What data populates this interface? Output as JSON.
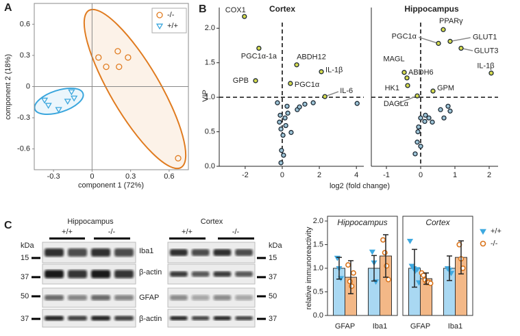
{
  "chart_data": [
    {
      "type": "scatter",
      "panel": "A",
      "x_label": "component 1 (72%)",
      "y_label": "component 2 (18%)",
      "xlim": [
        -0.45,
        0.75
      ],
      "ylim": [
        -0.8,
        0.8
      ],
      "xticks": [
        -0.3,
        0,
        0.3,
        0.6
      ],
      "yticks": [
        -0.6,
        -0.3,
        0,
        0.3,
        0.6
      ],
      "legend": "upper right",
      "series": [
        {
          "name": "-/-",
          "color": "#e07b1f",
          "marker": "circle",
          "x": [
            0.05,
            0.11,
            0.2,
            0.21,
            0.28,
            0.67
          ],
          "values": [
            0.28,
            0.19,
            0.34,
            0.19,
            0.28,
            -0.69
          ]
        },
        {
          "name": "+/+",
          "color": "#3aa6dd",
          "marker": "triangle",
          "x": [
            -0.37,
            -0.34,
            -0.26,
            -0.19,
            -0.16,
            -0.14
          ],
          "values": [
            -0.13,
            -0.18,
            -0.22,
            -0.14,
            -0.05,
            -0.11
          ]
        }
      ]
    },
    {
      "type": "scatter",
      "panel": "B",
      "title": "Cortex",
      "y_label": "VIP",
      "x_label": "log2 (fold change)",
      "xlim": [
        -3.4,
        4.4
      ],
      "ylim": [
        0,
        2.3
      ],
      "xticks": [
        -2,
        0,
        2,
        4
      ],
      "yticks": [
        {
          "value": 0,
          "label": "0.0"
        },
        {
          "value": 0.5,
          "label": "0.5"
        },
        {
          "value": 1,
          "label": "1.0"
        },
        {
          "value": 1.5,
          "label": "1.5"
        },
        {
          "value": 2,
          "label": "2.0"
        }
      ],
      "hline": 1,
      "vline": 0,
      "series": [
        {
          "color": "#d6db4f",
          "x": [
            -2.04,
            -1.26,
            0.78,
            -1.44,
            0.44,
            2.11,
            2.3
          ],
          "values": [
            2.17,
            1.71,
            1.47,
            1.24,
            1.2,
            1.37,
            1.01
          ],
          "labels": [
            "COX1",
            "PGC1α-1a",
            "ABDH12",
            "GPB",
            "PGC1α",
            "IL-1β",
            "IL-6"
          ]
        },
        {
          "color": "#9cc3d6",
          "x": [
            -0.26,
            0.26,
            -0.11,
            0.3,
            0.15,
            -0.15,
            0.19,
            -0.07,
            0.48,
            0.04,
            -0.04,
            0.07,
            -0.07,
            0.81,
            0.93,
            1.22,
            1.67,
            4.04
          ],
          "values": [
            0.92,
            0.87,
            0.74,
            0.77,
            0.7,
            0.64,
            0.59,
            0.54,
            0.49,
            0.45,
            0.23,
            0.16,
            0.05,
            0.82,
            0.86,
            0.9,
            0.92,
            0.91
          ]
        }
      ]
    },
    {
      "type": "scatter",
      "title": "Hippocampus",
      "xlim": [
        -1.44,
        2.26
      ],
      "ylim": [
        0,
        2.3
      ],
      "xticks": [
        -1,
        0,
        1,
        2
      ],
      "hline": 1,
      "vline": 0,
      "series": [
        {
          "color": "#d6db4f",
          "x": [
            0.66,
            0.52,
            0.86,
            1.18,
            2.06,
            -0.48,
            -0.4,
            -0.38,
            0.36,
            -0.1
          ],
          "values": [
            1.98,
            1.78,
            1.81,
            1.71,
            1.35,
            1.36,
            1.28,
            1.17,
            1.09,
            1.02
          ],
          "labels": [
            "PPARγ",
            "PGC1α",
            "GLUT1",
            "GLUT3",
            "IL-1β",
            "MAGL",
            "ABDH6",
            "HK1",
            "GPM",
            "DAGLα"
          ]
        },
        {
          "color": "#9cc3d6",
          "x": [
            0.8,
            0.86,
            0.58,
            0.68,
            0.14,
            0.24,
            0.34,
            0.12,
            0,
            -0.06,
            -0.08,
            -0.1,
            0,
            -0.16
          ],
          "values": [
            0.87,
            0.8,
            0.82,
            0.7,
            0.74,
            0.7,
            0.64,
            0.65,
            0.7,
            0.57,
            0.5,
            0.35,
            0.29,
            0.18
          ]
        }
      ]
    },
    {
      "type": "bar",
      "title": "Hippocampus",
      "y_label": "relative immunoreactivity",
      "categories": [
        "GFAP",
        "Iba1"
      ],
      "ylim": [
        0,
        2
      ],
      "yticks": [
        {
          "value": 0,
          "label": "0.0"
        },
        {
          "value": 0.5,
          "label": "0.5"
        },
        {
          "value": 1,
          "label": "1.0"
        },
        {
          "value": 1.5,
          "label": "1.5"
        },
        {
          "value": 2,
          "label": "2.0"
        }
      ],
      "series": [
        {
          "color": "#a9d8f2",
          "point_color": "#3fa9e0",
          "marker": "triangle",
          "values": [
            1,
            1
          ],
          "errors": [
            0.23,
            0.27
          ],
          "points": [
            [
              1.22,
              1.0,
              0.79
            ],
            [
              1.35,
              1.12,
              0.72
            ]
          ]
        },
        {
          "color": "#f3b887",
          "point_color": "#d9731a",
          "marker": "circle",
          "values": [
            0.81,
            1.26
          ],
          "errors": [
            0.35,
            0.45
          ],
          "points": [
            [
              1.07,
              0.72,
              0.62,
              0.9
            ],
            [
              1.6,
              1.33,
              1.05,
              0.76
            ]
          ]
        }
      ]
    },
    {
      "type": "bar",
      "title": "Cortex",
      "categories": [
        "GFAP",
        "Iba1"
      ],
      "ylim": [
        0,
        2
      ],
      "legend": "upper right",
      "series": [
        {
          "name": "+/+",
          "color": "#a9d8f2",
          "point_color": "#3fa9e0",
          "marker": "triangle",
          "values": [
            1,
            1
          ],
          "errors": [
            0.4,
            0.26
          ],
          "points": [
            [
              1.58,
              1.05,
              1.0,
              0.95,
              0.98,
              0.7
            ],
            [
              1.0,
              0.97,
              0.9
            ]
          ]
        },
        {
          "name": "-/-",
          "color": "#f3b887",
          "point_color": "#d9731a",
          "marker": "circle",
          "values": [
            0.78,
            1.23
          ],
          "errors": [
            0.12,
            0.35
          ],
          "points": [
            [
              0.9,
              0.85,
              0.75,
              0.7,
              0.7,
              0.68
            ],
            [
              1.5,
              1.2,
              1.0
            ]
          ]
        }
      ]
    }
  ],
  "blot": {
    "panel": "C",
    "hippocampus": "Hippocampus",
    "cortex": "Cortex",
    "lanes": [
      "+/+",
      "-/-"
    ],
    "proteins": [
      "Iba1",
      "β-actin",
      "GFAP",
      "β-actin"
    ],
    "kda": "kDa",
    "markers": [
      "15",
      "37",
      "50",
      "37"
    ]
  }
}
